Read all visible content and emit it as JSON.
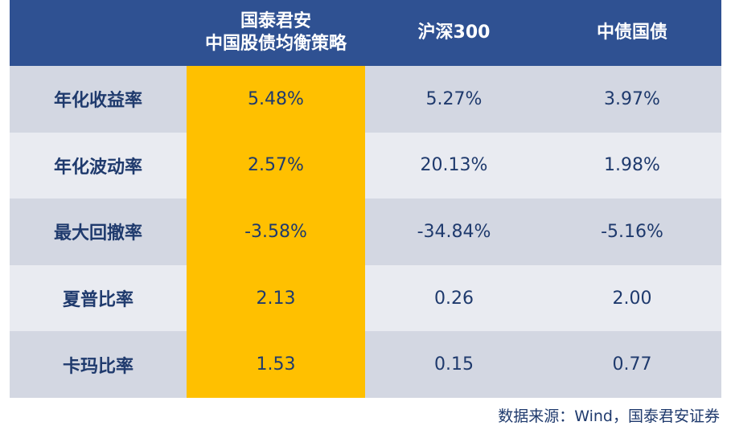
{
  "table": {
    "headers": [
      {
        "lines": [
          "",
          ""
        ]
      },
      {
        "lines": [
          "国泰君安",
          "中国股债均衡策略"
        ]
      },
      {
        "lines": [
          "沪深300",
          ""
        ]
      },
      {
        "lines": [
          "中债国债",
          ""
        ]
      }
    ],
    "rows": [
      {
        "label": "年化收益率",
        "values": [
          "5.48%",
          "5.27%",
          "3.97%"
        ]
      },
      {
        "label": "年化波动率",
        "values": [
          "2.57%",
          "20.13%",
          "1.98%"
        ]
      },
      {
        "label": "最大回撤率",
        "values": [
          "-3.58%",
          "-34.84%",
          "-5.16%"
        ]
      },
      {
        "label": "夏普比率",
        "values": [
          "2.13",
          "0.26",
          "2.00"
        ]
      },
      {
        "label": "卡玛比率",
        "values": [
          "1.53",
          "0.15",
          "0.77"
        ]
      }
    ]
  },
  "source": "数据来源：Wind，国泰君安证券",
  "colors": {
    "header_bg": "#2f5192",
    "highlight": "#ffc000",
    "row_dark": "#d3d7e2",
    "row_light": "#e9ebf1",
    "text": "#1f3a6d"
  }
}
